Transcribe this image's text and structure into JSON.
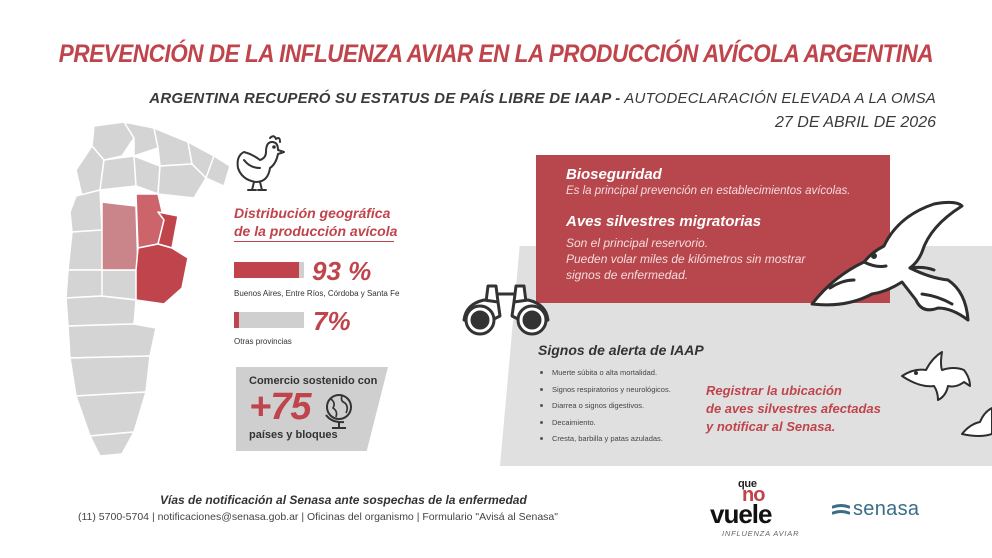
{
  "header": {
    "title": "PREVENCIÓN DE LA INFLUENZA AVIAR EN LA PRODUCCIÓN AVÍCOLA ARGENTINA",
    "subtitle_bold": "ARGENTINA RECUPERÓ SU ESTATUS DE PAÍS LIBRE DE IAAP -",
    "subtitle_rest": " AUTODECLARACIÓN ELEVADA A LA OMSA",
    "date": "27 DE ABRIL DE 2026"
  },
  "distribution": {
    "title_line1": "Distribución geográfica",
    "title_line2": "de la producción avícola",
    "bars": [
      {
        "percent_label": "93 %",
        "value": 93,
        "caption": "Buenos Aires, Entre Ríos, Córdoba y Santa Fe"
      },
      {
        "percent_label": "7%",
        "value": 7,
        "caption": "Otras provincias"
      }
    ]
  },
  "commerce": {
    "line1": "Comercio sostenido con",
    "number": "+75",
    "line2": "países y bloques"
  },
  "biosecurity": {
    "title": "Bioseguridad",
    "text": "Es la principal prevención en establecimientos avícolas."
  },
  "wild_birds": {
    "title": "Aves silvestres migratorias",
    "lines": [
      "Son el principal reservorio.",
      "Pueden volar miles de kilómetros sin mostrar",
      "signos de enfermedad."
    ]
  },
  "alert": {
    "title": "Signos de alerta de IAAP",
    "items": [
      "Muerte súbita o alta mortalidad.",
      "Signos respiratorios y neurológicos.",
      "Diarrea o signos digestivos.",
      "Decaimiento.",
      "Cresta, barbilla y patas azuladas."
    ]
  },
  "register": {
    "lines": [
      "Registrar la ubicación",
      "de aves silvestres afectadas",
      "y notificar al Senasa."
    ]
  },
  "footer": {
    "title": "Vías de notificación al Senasa ante sospechas de la enfermedad",
    "contacts": "(11) 5700-5704 | notificaciones@senasa.gob.ar | Oficinas del organismo | Formulario \"Avisá al Senasa\""
  },
  "logos": {
    "campaign_que": "que",
    "campaign_no": "no",
    "campaign_vuele": "vuele",
    "campaign_sub": "INFLUENZA AVIAR",
    "org": "senasa"
  },
  "colors": {
    "accent_red": "#c0444b",
    "box_red": "#b8474d",
    "gray": "#cfcfcf",
    "senasa_blue": "#3a6d88"
  }
}
